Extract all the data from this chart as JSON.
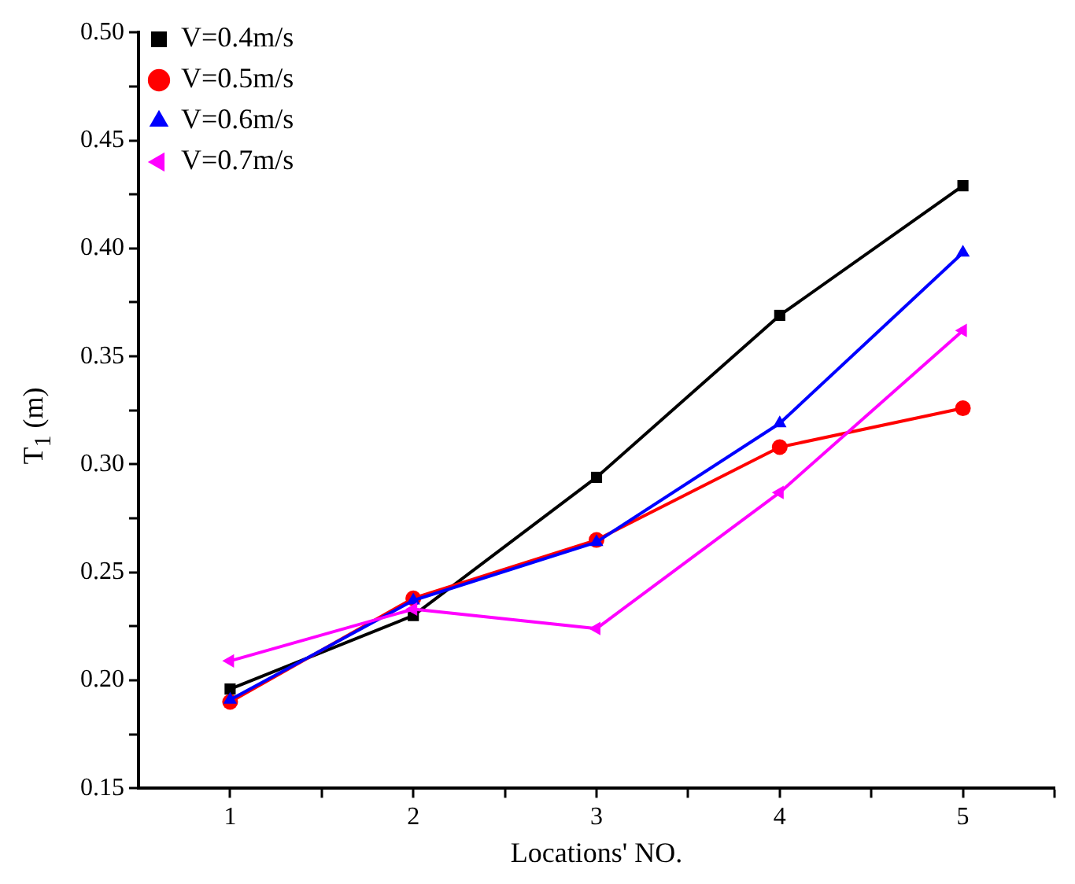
{
  "chart_data": {
    "type": "line",
    "xlabel": "Locations' NO.",
    "ylabel": "T$_{1}$ (m)",
    "x": [
      1,
      2,
      3,
      4,
      5
    ],
    "xlim": [
      0.5,
      5.5
    ],
    "xticks": [
      1,
      {
        "value": 1.5,
        "label": null
      },
      2,
      {
        "value": 2.5,
        "label": null
      },
      3,
      {
        "value": 3.5,
        "label": null
      },
      4,
      {
        "value": 4.5,
        "label": null
      },
      5,
      {
        "value": 5.5,
        "label": null
      }
    ],
    "ylim": [
      0.15,
      0.5
    ],
    "yticks": [
      0.15,
      {
        "value": 0.175,
        "label": null
      },
      {
        "value": 0.2,
        "label": "0.20"
      },
      {
        "value": 0.225,
        "label": null
      },
      0.25,
      {
        "value": 0.275,
        "label": null
      },
      {
        "value": 0.3,
        "label": "0.30"
      },
      {
        "value": 0.325,
        "label": null
      },
      0.35,
      {
        "value": 0.375,
        "label": null
      },
      {
        "value": 0.4,
        "label": "0.40"
      },
      {
        "value": 0.425,
        "label": null
      },
      0.45,
      {
        "value": 0.475,
        "label": null
      },
      {
        "value": 0.5,
        "label": "0.50"
      }
    ],
    "grid": false,
    "legend": "top left",
    "line_style": "solid",
    "series": [
      {
        "name": "V=0.4m/s",
        "color": "#000000",
        "marker": "square",
        "values": [
          0.196,
          0.23,
          0.294,
          0.369,
          0.429
        ]
      },
      {
        "name": "V=0.5m/s",
        "color": "#ff0000",
        "marker": "circle",
        "values": [
          0.19,
          0.238,
          0.265,
          0.308,
          0.326
        ]
      },
      {
        "name": "V=0.6m/s",
        "color": "#0000ff",
        "marker": "triangle",
        "values": [
          0.191,
          0.237,
          0.264,
          0.319,
          0.398
        ]
      },
      {
        "name": "V=0.7m/s",
        "color": "#ff00ff",
        "marker": "triangle-left",
        "values": [
          0.209,
          0.233,
          0.224,
          0.287,
          0.362
        ]
      }
    ]
  }
}
